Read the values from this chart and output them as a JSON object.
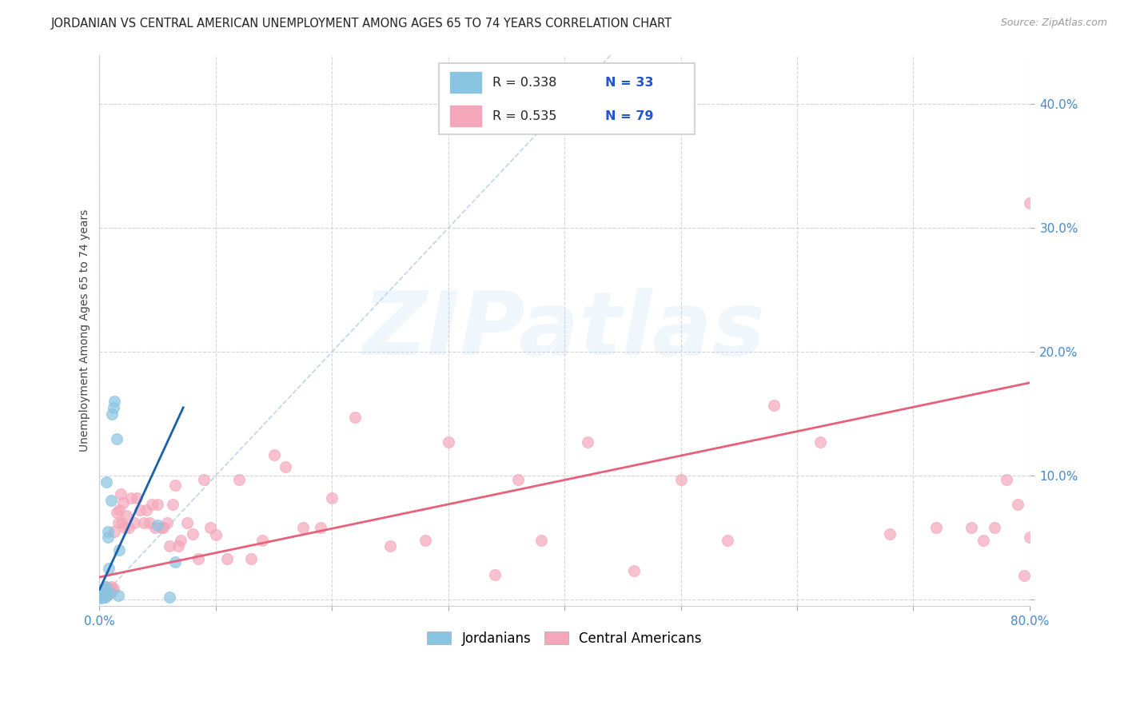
{
  "title": "JORDANIAN VS CENTRAL AMERICAN UNEMPLOYMENT AMONG AGES 65 TO 74 YEARS CORRELATION CHART",
  "source": "Source: ZipAtlas.com",
  "ylabel": "Unemployment Among Ages 65 to 74 years",
  "xlim": [
    0,
    0.8
  ],
  "ylim": [
    -0.005,
    0.44
  ],
  "xticks": [
    0.0,
    0.1,
    0.2,
    0.3,
    0.4,
    0.5,
    0.6,
    0.7,
    0.8
  ],
  "yticks": [
    0.0,
    0.1,
    0.2,
    0.3,
    0.4
  ],
  "xtick_labels_visible": [
    "0.0%",
    "80.0%"
  ],
  "xtick_labels_pos": [
    0.0,
    0.8
  ],
  "ytick_labels": [
    "",
    "10.0%",
    "20.0%",
    "30.0%",
    "40.0%"
  ],
  "watermark": "ZIPatlas",
  "legend_r1": "R = 0.338",
  "legend_n1": "N = 33",
  "legend_r2": "R = 0.535",
  "legend_n2": "N = 79",
  "blue_color": "#89c4e1",
  "pink_color": "#f4a7bb",
  "trend_blue": "#1a5faa",
  "trend_pink": "#e8607a",
  "diag_color": "#b8d0e8",
  "background": "#ffffff",
  "grid_color": "#d0d0d0",
  "jordanians_x": [
    0.001,
    0.001,
    0.002,
    0.002,
    0.002,
    0.003,
    0.003,
    0.003,
    0.003,
    0.004,
    0.004,
    0.004,
    0.005,
    0.005,
    0.005,
    0.005,
    0.005,
    0.005,
    0.006,
    0.007,
    0.007,
    0.008,
    0.009,
    0.01,
    0.011,
    0.012,
    0.013,
    0.015,
    0.016,
    0.017,
    0.05,
    0.06,
    0.065
  ],
  "jordanians_y": [
    0.002,
    0.005,
    0.001,
    0.003,
    0.008,
    0.002,
    0.004,
    0.006,
    0.007,
    0.003,
    0.005,
    0.009,
    0.002,
    0.003,
    0.004,
    0.005,
    0.007,
    0.01,
    0.095,
    0.05,
    0.055,
    0.025,
    0.005,
    0.08,
    0.15,
    0.155,
    0.16,
    0.13,
    0.003,
    0.04,
    0.06,
    0.002,
    0.03
  ],
  "central_x": [
    0.001,
    0.002,
    0.003,
    0.004,
    0.005,
    0.005,
    0.006,
    0.007,
    0.008,
    0.009,
    0.01,
    0.011,
    0.012,
    0.013,
    0.015,
    0.016,
    0.017,
    0.018,
    0.019,
    0.02,
    0.022,
    0.023,
    0.025,
    0.027,
    0.03,
    0.032,
    0.035,
    0.038,
    0.04,
    0.043,
    0.045,
    0.048,
    0.05,
    0.053,
    0.055,
    0.058,
    0.06,
    0.063,
    0.065,
    0.068,
    0.07,
    0.075,
    0.08,
    0.085,
    0.09,
    0.095,
    0.1,
    0.11,
    0.12,
    0.13,
    0.14,
    0.15,
    0.16,
    0.175,
    0.19,
    0.2,
    0.22,
    0.25,
    0.28,
    0.3,
    0.34,
    0.36,
    0.38,
    0.42,
    0.46,
    0.5,
    0.54,
    0.58,
    0.62,
    0.68,
    0.72,
    0.75,
    0.76,
    0.77,
    0.78,
    0.79,
    0.795,
    0.8,
    0.8
  ],
  "central_y": [
    0.004,
    0.005,
    0.007,
    0.008,
    0.004,
    0.01,
    0.006,
    0.004,
    0.007,
    0.009,
    0.01,
    0.007,
    0.009,
    0.055,
    0.07,
    0.062,
    0.072,
    0.085,
    0.062,
    0.078,
    0.058,
    0.068,
    0.058,
    0.082,
    0.062,
    0.082,
    0.072,
    0.062,
    0.072,
    0.062,
    0.077,
    0.058,
    0.077,
    0.058,
    0.058,
    0.062,
    0.043,
    0.077,
    0.092,
    0.043,
    0.048,
    0.062,
    0.053,
    0.033,
    0.097,
    0.058,
    0.052,
    0.033,
    0.097,
    0.033,
    0.048,
    0.117,
    0.107,
    0.058,
    0.058,
    0.082,
    0.147,
    0.043,
    0.048,
    0.127,
    0.02,
    0.097,
    0.048,
    0.127,
    0.023,
    0.097,
    0.048,
    0.157,
    0.127,
    0.053,
    0.058,
    0.058,
    0.048,
    0.058,
    0.097,
    0.077,
    0.019,
    0.05,
    0.32
  ],
  "blue_trend_x_end": 0.072,
  "pink_trend_x_end": 0.8,
  "pink_trend_y_start": 0.018,
  "pink_trend_y_end": 0.175,
  "blue_trend_y_start": 0.008,
  "blue_trend_y_end": 0.155
}
